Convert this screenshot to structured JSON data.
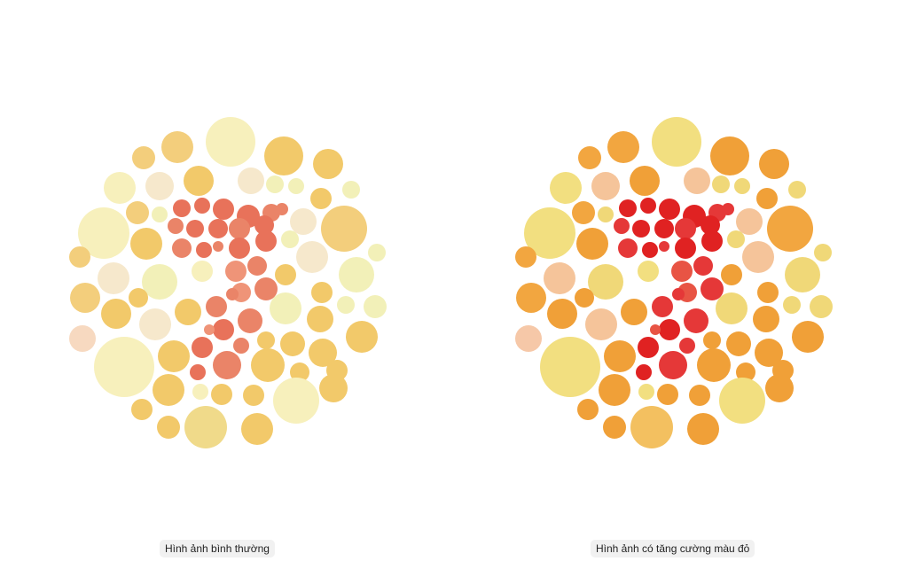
{
  "captions": {
    "normal": "Hình ảnh bình thường",
    "enhanced": "Hình ảnh có tăng cường màu đỏ"
  },
  "plates": {
    "normal": {
      "figure_digit_colors": [
        "#e8725a",
        "#ea8468",
        "#ef9478"
      ],
      "background_colors": [
        "#f7f0bc",
        "#f2f0b8",
        "#f4dca0",
        "#f3ce7c",
        "#f2c96a",
        "#f0da8a",
        "#f6e8cc",
        "#f7d9c0"
      ]
    },
    "enhanced": {
      "figure_digit_colors": [
        "#e02222",
        "#e53838",
        "#e85444"
      ],
      "background_colors": [
        "#f2df80",
        "#f0d878",
        "#f3c060",
        "#f2a640",
        "#f0a038",
        "#f3c060",
        "#f5c49a",
        "#f6c8a8"
      ]
    }
  }
}
